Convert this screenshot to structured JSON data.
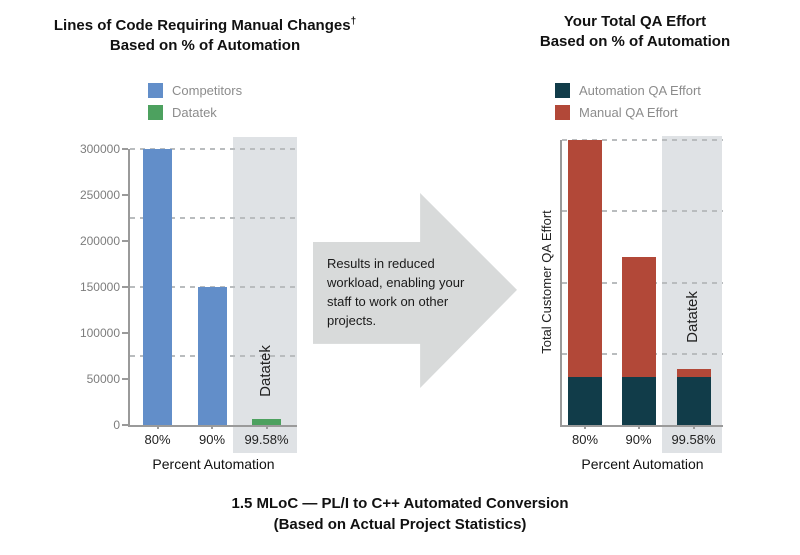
{
  "left_chart": {
    "title_line1": "Lines of Code Requiring Manual Changes",
    "title_dagger": "†",
    "title_line2": "Based on % of Automation",
    "legend": [
      {
        "label": "Competitors",
        "color": "#628ec9"
      },
      {
        "label": "Datatek",
        "color": "#4da15f"
      }
    ],
    "xlabel": "Percent Automation",
    "band_annotation": "Datatek"
  },
  "right_chart": {
    "title_line1": "Your Total QA Effort",
    "title_line2": "Based on % of Automation",
    "legend": [
      {
        "label": "Automation QA Effort",
        "color": "#113c49"
      },
      {
        "label": "Manual QA Effort",
        "color": "#b24838"
      }
    ],
    "ylabel": "Total Customer QA Effort",
    "xlabel": "Percent Automation",
    "band_annotation": "Datatek"
  },
  "arrow": {
    "text": "Results in reduced workload, enabling your staff to work on other projects."
  },
  "caption": {
    "line1": "1.5 MLoC — PL/I to C++ Automated Conversion",
    "line2": "(Based on Actual Project Statistics)"
  },
  "colors": {
    "competitor_blue": "#628ec9",
    "datatek_green": "#4da15f",
    "automation_teal": "#113c49",
    "manual_red": "#b24838",
    "highlight_band": "#dfe2e5",
    "arrow_fill": "#d8dada",
    "axis_gray": "#9a9a9a"
  },
  "chart_data": [
    {
      "type": "bar",
      "title": "Lines of Code Requiring Manual Changes† Based on % of Automation",
      "categories": [
        "80%",
        "90%",
        "99.58%"
      ],
      "series": [
        {
          "name": "Competitors",
          "values": [
            300000,
            150000,
            null
          ]
        },
        {
          "name": "Datatek",
          "values": [
            null,
            null,
            6300
          ]
        }
      ],
      "xlabel": "Percent Automation",
      "ylabel": "",
      "ylim": [
        0,
        300000
      ],
      "yticks": [
        0,
        50000,
        100000,
        150000,
        200000,
        250000,
        300000
      ],
      "gridline_values": [
        75000,
        150000,
        225000,
        300000
      ],
      "grid_style": "dashed",
      "legend_position": "top",
      "highlight_band_category": "99.58%",
      "band_annotation": "Datatek"
    },
    {
      "type": "bar",
      "stacked": true,
      "title": "Your Total QA Effort Based on % of Automation",
      "categories": [
        "80%",
        "90%",
        "99.58%"
      ],
      "series": [
        {
          "name": "Automation QA Effort",
          "values": [
            17,
            17,
            17
          ]
        },
        {
          "name": "Manual QA Effort",
          "values": [
            83,
            42,
            2.5
          ]
        }
      ],
      "xlabel": "Percent Automation",
      "ylabel": "Total Customer QA Effort",
      "ylim": [
        0,
        100
      ],
      "units": "relative effort (no numeric y ticks shown)",
      "yticks": [],
      "gridline_values": [
        25,
        50,
        75,
        100
      ],
      "grid_style": "dashed",
      "legend_position": "top",
      "highlight_band_category": "99.58%",
      "band_annotation": "Datatek"
    }
  ]
}
